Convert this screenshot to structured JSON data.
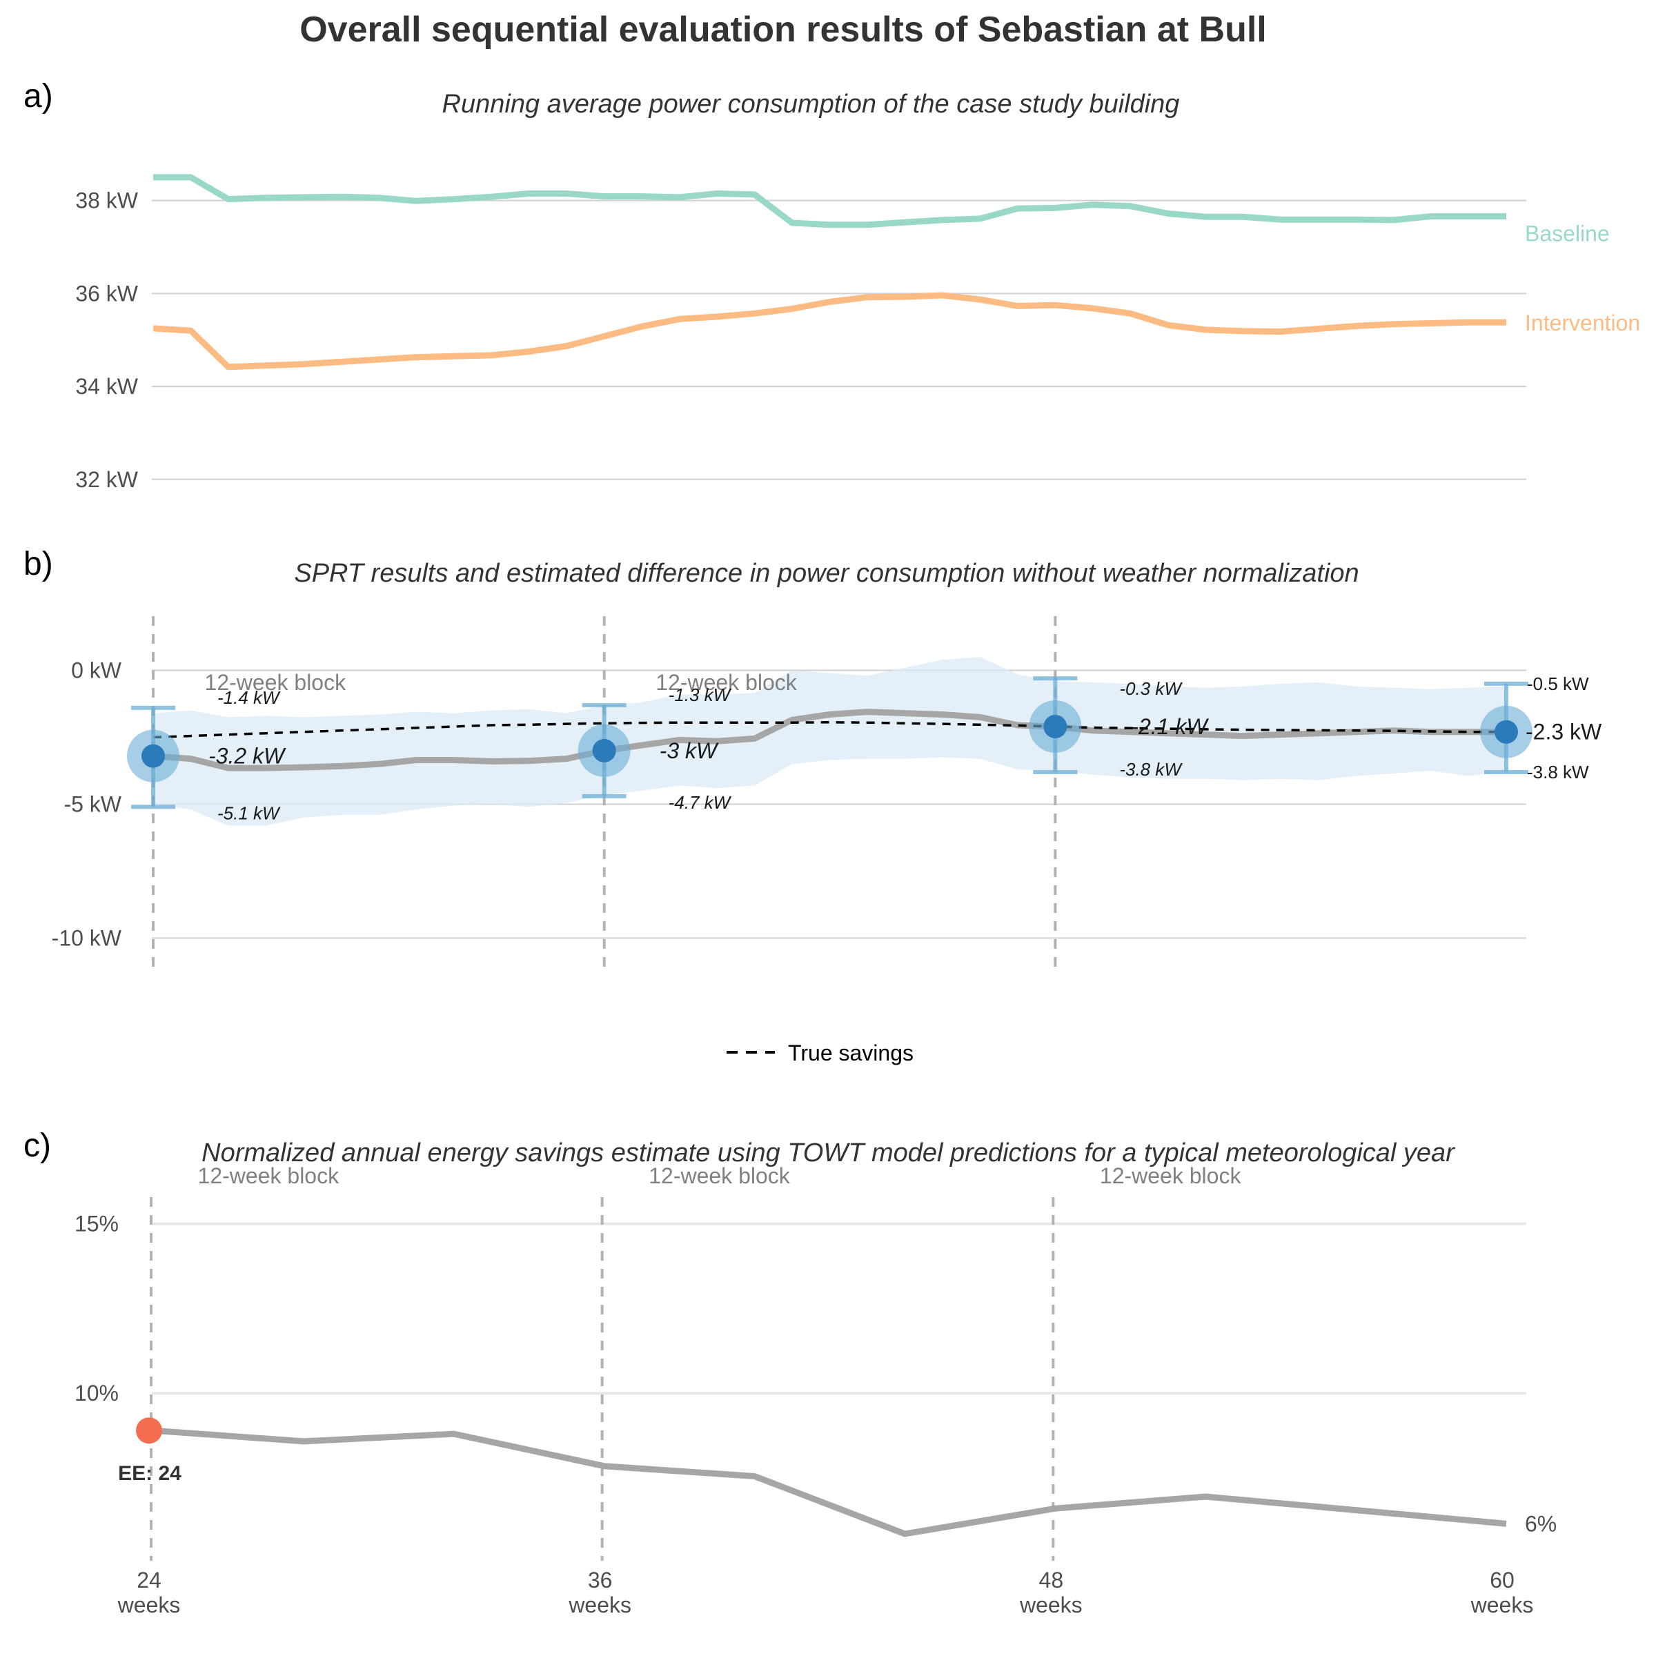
{
  "title": "Overall sequential evaluation results of Sebastian at Bull",
  "colors": {
    "baseline": "#99d8c9",
    "intervention": "#fdbb84",
    "difference_line": "#a6a6a6",
    "ci_band": "#dbe9f6",
    "sprt_point": "#2b7bba",
    "sprt_halo": "#6baed6",
    "ee_point": "#f46d50",
    "true_savings": "#000000"
  },
  "panels": {
    "a": {
      "letter": "a)",
      "subtitle": "Running average power consumption of the case study building"
    },
    "b": {
      "letter": "b)",
      "subtitle": "SPRT results and estimated difference in power consumption without weather normalization"
    },
    "c": {
      "letter": "c)",
      "subtitle": "Normalized annual energy savings estimate using TOWT model predictions for a typical meteorological year"
    }
  },
  "legend": {
    "true_savings": "True savings"
  },
  "ee_label": "EE: 24",
  "chart_data": [
    {
      "type": "line",
      "panel": "a",
      "title": "Running average power consumption of the case study building",
      "y_ticks": [
        "32 kW",
        "34 kW",
        "36 kW",
        "38 kW"
      ],
      "y_tick_values": [
        32,
        34,
        36,
        38
      ],
      "ylim": [
        31.7,
        38.9
      ],
      "xlim": [
        24,
        60
      ],
      "grid": true,
      "x": [
        24,
        25,
        26,
        27,
        28,
        29,
        30,
        31,
        32,
        33,
        34,
        35,
        36,
        37,
        38,
        39,
        40,
        41,
        42,
        43,
        44,
        45,
        46,
        47,
        48,
        49,
        50,
        51,
        52,
        53,
        54,
        55,
        56,
        57,
        58,
        59,
        60
      ],
      "series": [
        {
          "name": "Baseline",
          "values": [
            38.5,
            38.5,
            38.03,
            38.06,
            38.07,
            38.08,
            38.06,
            37.99,
            38.03,
            38.08,
            38.15,
            38.15,
            38.09,
            38.09,
            38.07,
            38.15,
            38.13,
            37.52,
            37.48,
            37.48,
            37.53,
            37.58,
            37.61,
            37.83,
            37.84,
            37.91,
            37.88,
            37.72,
            37.65,
            37.65,
            37.59,
            37.59,
            37.59,
            37.58,
            37.66,
            37.66,
            37.66
          ]
        },
        {
          "name": "Intervention",
          "values": [
            35.25,
            35.2,
            34.42,
            34.45,
            34.48,
            34.53,
            34.58,
            34.63,
            34.65,
            34.67,
            34.75,
            34.87,
            35.08,
            35.29,
            35.45,
            35.5,
            35.57,
            35.67,
            35.82,
            35.92,
            35.93,
            35.96,
            35.87,
            35.73,
            35.75,
            35.68,
            35.57,
            35.32,
            35.22,
            35.19,
            35.18,
            35.24,
            35.3,
            35.34,
            35.36,
            35.38,
            35.38
          ]
        }
      ]
    },
    {
      "type": "line",
      "panel": "b",
      "title": "SPRT results and estimated difference in power consumption without weather normalization",
      "y_ticks": [
        "-10 kW",
        "-5 kW",
        "0 kW"
      ],
      "y_tick_values": [
        -10,
        -5,
        0
      ],
      "ylim": [
        -11.3,
        2.1
      ],
      "xlim": [
        24,
        60
      ],
      "grid": true,
      "block_label": "12-week block",
      "x": [
        24,
        25,
        26,
        27,
        28,
        29,
        30,
        31,
        32,
        33,
        34,
        35,
        36,
        37,
        38,
        39,
        40,
        41,
        42,
        43,
        44,
        45,
        46,
        47,
        48,
        49,
        50,
        51,
        52,
        53,
        54,
        55,
        56,
        57,
        58,
        59,
        60
      ],
      "series": [
        {
          "name": "",
          "values": [
            -3.2,
            -3.3,
            -3.65,
            -3.65,
            -3.62,
            -3.58,
            -3.5,
            -3.35,
            -3.35,
            -3.4,
            -3.38,
            -3.3,
            -3.0,
            -2.8,
            -2.6,
            -2.65,
            -2.55,
            -1.85,
            -1.65,
            -1.55,
            -1.6,
            -1.65,
            -1.75,
            -2.05,
            -2.1,
            -2.25,
            -2.3,
            -2.35,
            -2.4,
            -2.45,
            -2.4,
            -2.35,
            -2.3,
            -2.25,
            -2.3,
            -2.3,
            -2.3
          ]
        },
        {
          "name": "True savings",
          "style": "dashed",
          "values": [
            -2.5,
            -2.45,
            -2.4,
            -2.35,
            -2.3,
            -2.25,
            -2.2,
            -2.15,
            -2.1,
            -2.05,
            -2.03,
            -2.0,
            -1.98,
            -1.96,
            -1.95,
            -1.95,
            -1.95,
            -1.95,
            -1.94,
            -1.95,
            -1.98,
            -2.0,
            -2.03,
            -2.06,
            -2.1,
            -2.14,
            -2.16,
            -2.18,
            -2.2,
            -2.22,
            -2.23,
            -2.24,
            -2.25,
            -2.26,
            -2.28,
            -2.3,
            -2.3
          ]
        }
      ],
      "band_lower": [
        -5.0,
        -5.2,
        -5.8,
        -5.8,
        -5.5,
        -5.4,
        -5.4,
        -5.2,
        -5.05,
        -5.0,
        -5.1,
        -4.95,
        -4.65,
        -4.5,
        -4.3,
        -4.4,
        -4.3,
        -3.5,
        -3.35,
        -3.3,
        -3.3,
        -3.25,
        -3.3,
        -3.7,
        -3.75,
        -3.9,
        -4.0,
        -4.05,
        -4.05,
        -4.1,
        -4.05,
        -4.1,
        -3.95,
        -3.85,
        -3.75,
        -3.95,
        -3.75
      ],
      "band_upper": [
        -1.6,
        -1.5,
        -1.75,
        -1.7,
        -1.75,
        -1.7,
        -1.65,
        -1.55,
        -1.6,
        -1.5,
        -1.45,
        -1.6,
        -1.3,
        -1.2,
        -0.9,
        -0.9,
        -0.85,
        0.0,
        -0.1,
        -0.2,
        0.1,
        0.4,
        0.5,
        -0.15,
        -0.4,
        -0.45,
        -0.5,
        -0.6,
        -0.65,
        -0.6,
        -0.5,
        -0.45,
        -0.6,
        -0.65,
        -0.7,
        -0.65,
        -0.6
      ],
      "sprt_points": [
        {
          "x": 24,
          "estimate": -3.2,
          "lower": -5.1,
          "upper": -1.4,
          "estimate_label": "-3.2 kW",
          "lower_label": "-5.1 kW",
          "upper_label": "-1.4 kW"
        },
        {
          "x": 36,
          "estimate": -3.0,
          "lower": -4.7,
          "upper": -1.3,
          "estimate_label": "-3 kW",
          "lower_label": "-4.7 kW",
          "upper_label": "-1.3 kW"
        },
        {
          "x": 48,
          "estimate": -2.1,
          "lower": -3.8,
          "upper": -0.3,
          "estimate_label": "-2.1 kW",
          "lower_label": "-3.8 kW",
          "upper_label": "-0.3 kW"
        },
        {
          "x": 60,
          "estimate": -2.3,
          "lower": -3.8,
          "upper": -0.5,
          "estimate_label": "-2.3 kW",
          "lower_label": "-3.8 kW",
          "upper_label": "-0.5 kW"
        }
      ],
      "sprt_x": [
        24,
        36,
        48
      ]
    },
    {
      "type": "line",
      "panel": "c",
      "title": "Normalized annual energy savings estimate using TOWT model predictions for a typical meteorological year",
      "y_ticks": [
        "10%",
        "15%"
      ],
      "y_tick_values": [
        10,
        15
      ],
      "ylim": [
        5.3,
        16.5
      ],
      "xlim": [
        24,
        60
      ],
      "x_ticks": [
        24,
        36,
        48,
        60
      ],
      "x_tick_labels": [
        "24",
        "36",
        "48",
        "60"
      ],
      "x_tick_unit": "weeks",
      "grid": true,
      "block_label": "12-week block",
      "x": [
        24,
        28,
        32,
        36,
        40,
        44,
        48,
        52,
        56,
        60
      ],
      "series": [
        {
          "name": "",
          "values": [
            8.9,
            8.58,
            8.8,
            7.85,
            7.55,
            5.85,
            6.6,
            6.95,
            6.55,
            6.15
          ]
        }
      ],
      "end_label": "6%",
      "early_end": {
        "x": 24,
        "value": 8.9,
        "label": "EE: 24"
      }
    }
  ]
}
